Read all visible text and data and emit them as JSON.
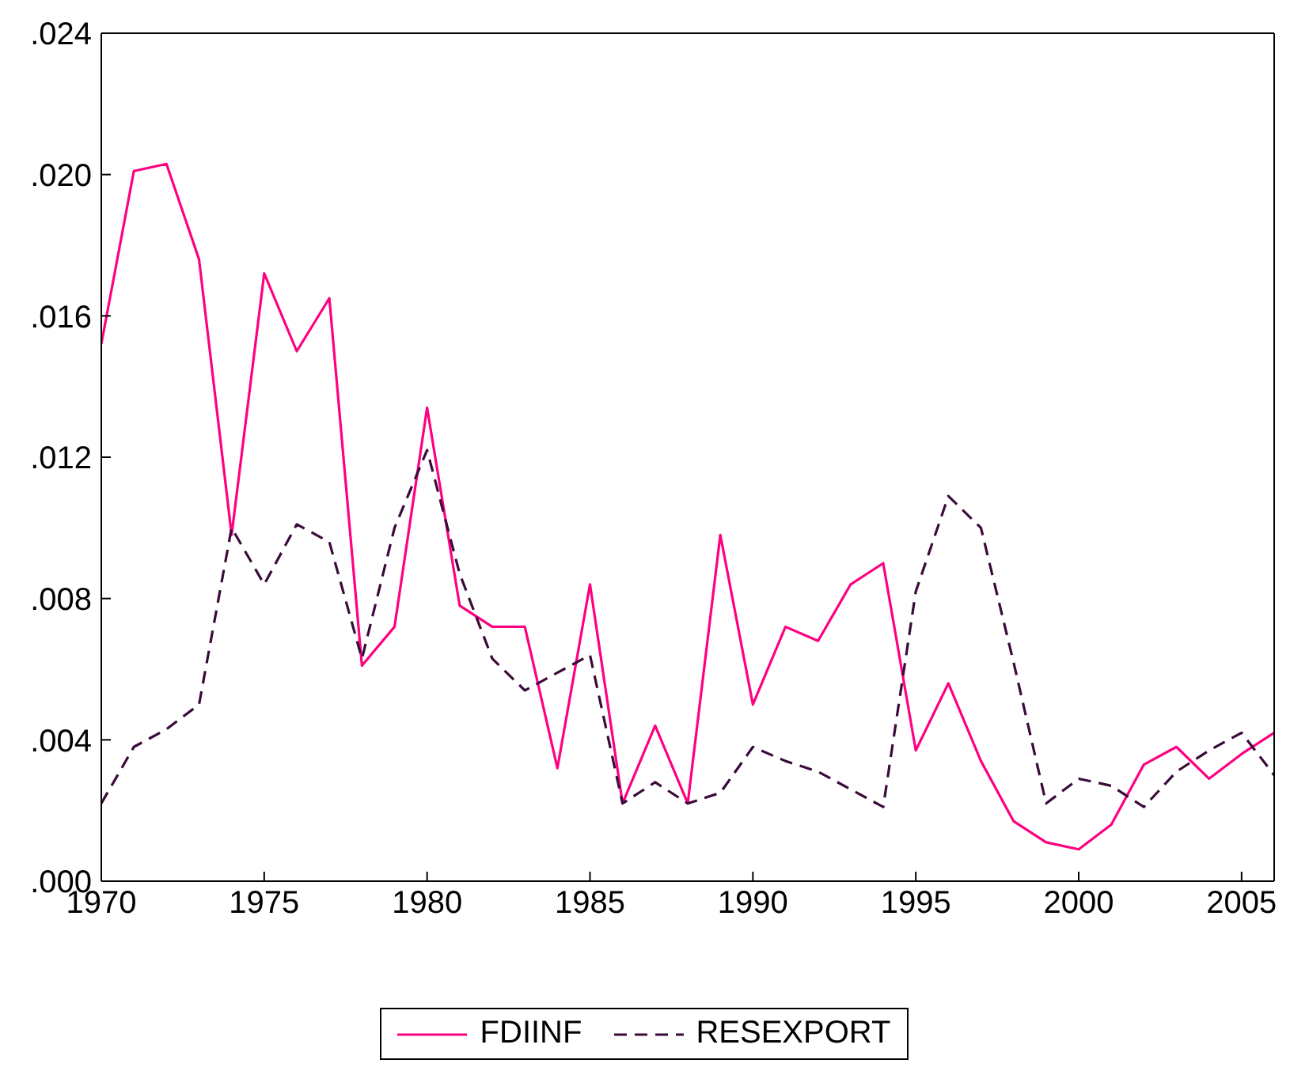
{
  "chart_data": {
    "type": "line",
    "x": [
      1970,
      1971,
      1972,
      1973,
      1974,
      1975,
      1976,
      1977,
      1978,
      1979,
      1980,
      1981,
      1982,
      1983,
      1984,
      1985,
      1986,
      1987,
      1988,
      1989,
      1990,
      1991,
      1992,
      1993,
      1994,
      1995,
      1996,
      1997,
      1998,
      1999,
      2000,
      2001,
      2002,
      2003,
      2004,
      2005,
      2006
    ],
    "series": [
      {
        "name": "FDIINF",
        "color": "#ff0080",
        "line_style": "solid",
        "values": [
          0.0152,
          0.0201,
          0.0203,
          0.0176,
          0.0098,
          0.0172,
          0.015,
          0.0165,
          0.0061,
          0.0072,
          0.0134,
          0.0078,
          0.0072,
          0.0072,
          0.0032,
          0.0084,
          0.0022,
          0.0044,
          0.0022,
          0.0098,
          0.005,
          0.0072,
          0.0068,
          0.0084,
          0.009,
          0.0037,
          0.0056,
          0.0034,
          0.0017,
          0.0011,
          0.0009,
          0.0016,
          0.0033,
          0.0038,
          0.0029,
          0.0036,
          0.0042
        ]
      },
      {
        "name": "RESEXPORT",
        "color": "#3a0a3a",
        "line_style": "dashed",
        "values": [
          0.0022,
          0.0038,
          0.0043,
          0.005,
          0.01,
          0.0084,
          0.0101,
          0.0096,
          0.0063,
          0.01,
          0.0122,
          0.0087,
          0.0063,
          0.0054,
          0.0059,
          0.0064,
          0.0022,
          0.0028,
          0.0022,
          0.0025,
          0.0038,
          0.0034,
          0.0031,
          0.0026,
          0.0021,
          0.0082,
          0.0109,
          0.01,
          0.0062,
          0.0022,
          0.0029,
          0.0027,
          0.0021,
          0.0031,
          0.0037,
          0.0042,
          0.003
        ]
      }
    ],
    "xlim": [
      1970,
      2006
    ],
    "xticks": [
      1970,
      1975,
      1980,
      1985,
      1990,
      1995,
      2000,
      2005
    ],
    "ylim": [
      0,
      0.024
    ],
    "yticks": [
      {
        "value": 0,
        "label": ".000"
      },
      {
        "value": 0.004,
        "label": ".004"
      },
      {
        "value": 0.008,
        "label": ".008"
      },
      {
        "value": 0.012,
        "label": ".012"
      },
      {
        "value": 0.016,
        "label": ".016"
      },
      {
        "value": 0.02,
        "label": ".020"
      },
      {
        "value": 0.024,
        "label": ".024"
      }
    ],
    "grid": false,
    "legend": "bottom",
    "marker": "none"
  }
}
